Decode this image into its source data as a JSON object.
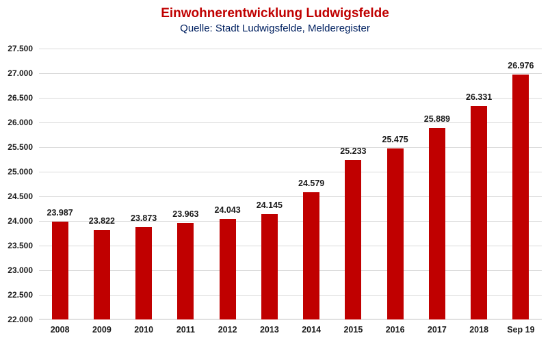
{
  "header": {
    "title": "Einwohnerentwicklung Ludwigsfelde",
    "subtitle": "Quelle: Stadt Ludwigsfelde, Melderegister"
  },
  "chart_data": {
    "type": "bar",
    "title": "Einwohnerentwicklung Ludwigsfelde",
    "subtitle": "Quelle: Stadt Ludwigsfelde, Melderegister",
    "categories": [
      "2008",
      "2009",
      "2010",
      "2011",
      "2012",
      "2013",
      "2014",
      "2015",
      "2016",
      "2017",
      "2018",
      "Sep 19"
    ],
    "values": [
      23987,
      23822,
      23873,
      23963,
      24043,
      24145,
      24579,
      25233,
      25475,
      25889,
      26331,
      26976
    ],
    "data_labels": [
      "23.987",
      "23.822",
      "23.873",
      "23.963",
      "24.043",
      "24.145",
      "24.579",
      "25.233",
      "25.475",
      "25.889",
      "26.331",
      "26.976"
    ],
    "xlabel": "",
    "ylabel": "",
    "ylim": [
      22000,
      27500
    ],
    "ytick_step": 500,
    "ytick_labels": [
      "22.000",
      "22.500",
      "23.000",
      "23.500",
      "24.000",
      "24.500",
      "25.000",
      "25.500",
      "26.000",
      "26.500",
      "27.000",
      "27.500"
    ],
    "grid": true,
    "legend_position": "none",
    "colors": {
      "bar": "#C00000",
      "title": "#C00000",
      "subtitle": "#002060",
      "gridline": "#D9D9D9",
      "axis_line": "#BFBFBF",
      "tick_text": "#1a1a1a"
    }
  }
}
